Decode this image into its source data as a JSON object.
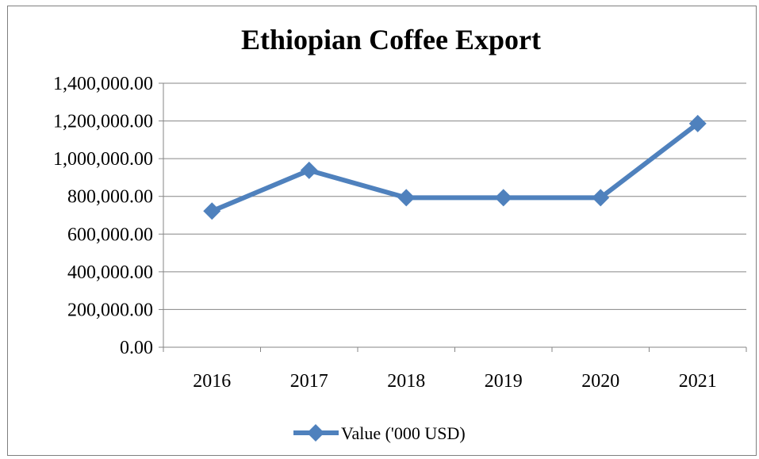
{
  "chart_data": {
    "type": "line",
    "title": "Ethiopian Coffee Export",
    "xlabel": "",
    "ylabel": "",
    "categories": [
      "2016",
      "2017",
      "2018",
      "2019",
      "2020",
      "2021"
    ],
    "series": [
      {
        "name": "Value ('000 USD)",
        "values": [
          722000,
          938000,
          793000,
          793000,
          793000,
          1186000
        ],
        "color": "#4f81bd",
        "marker": "diamond"
      }
    ],
    "ylim": [
      0,
      1400000
    ],
    "y_ticks": [
      "0.00",
      "200,000.00",
      "400,000.00",
      "600,000.00",
      "800,000.00",
      "1,000,000.00",
      "1,200,000.00",
      "1,400,000.00"
    ],
    "grid": true,
    "legend_position": "bottom"
  }
}
